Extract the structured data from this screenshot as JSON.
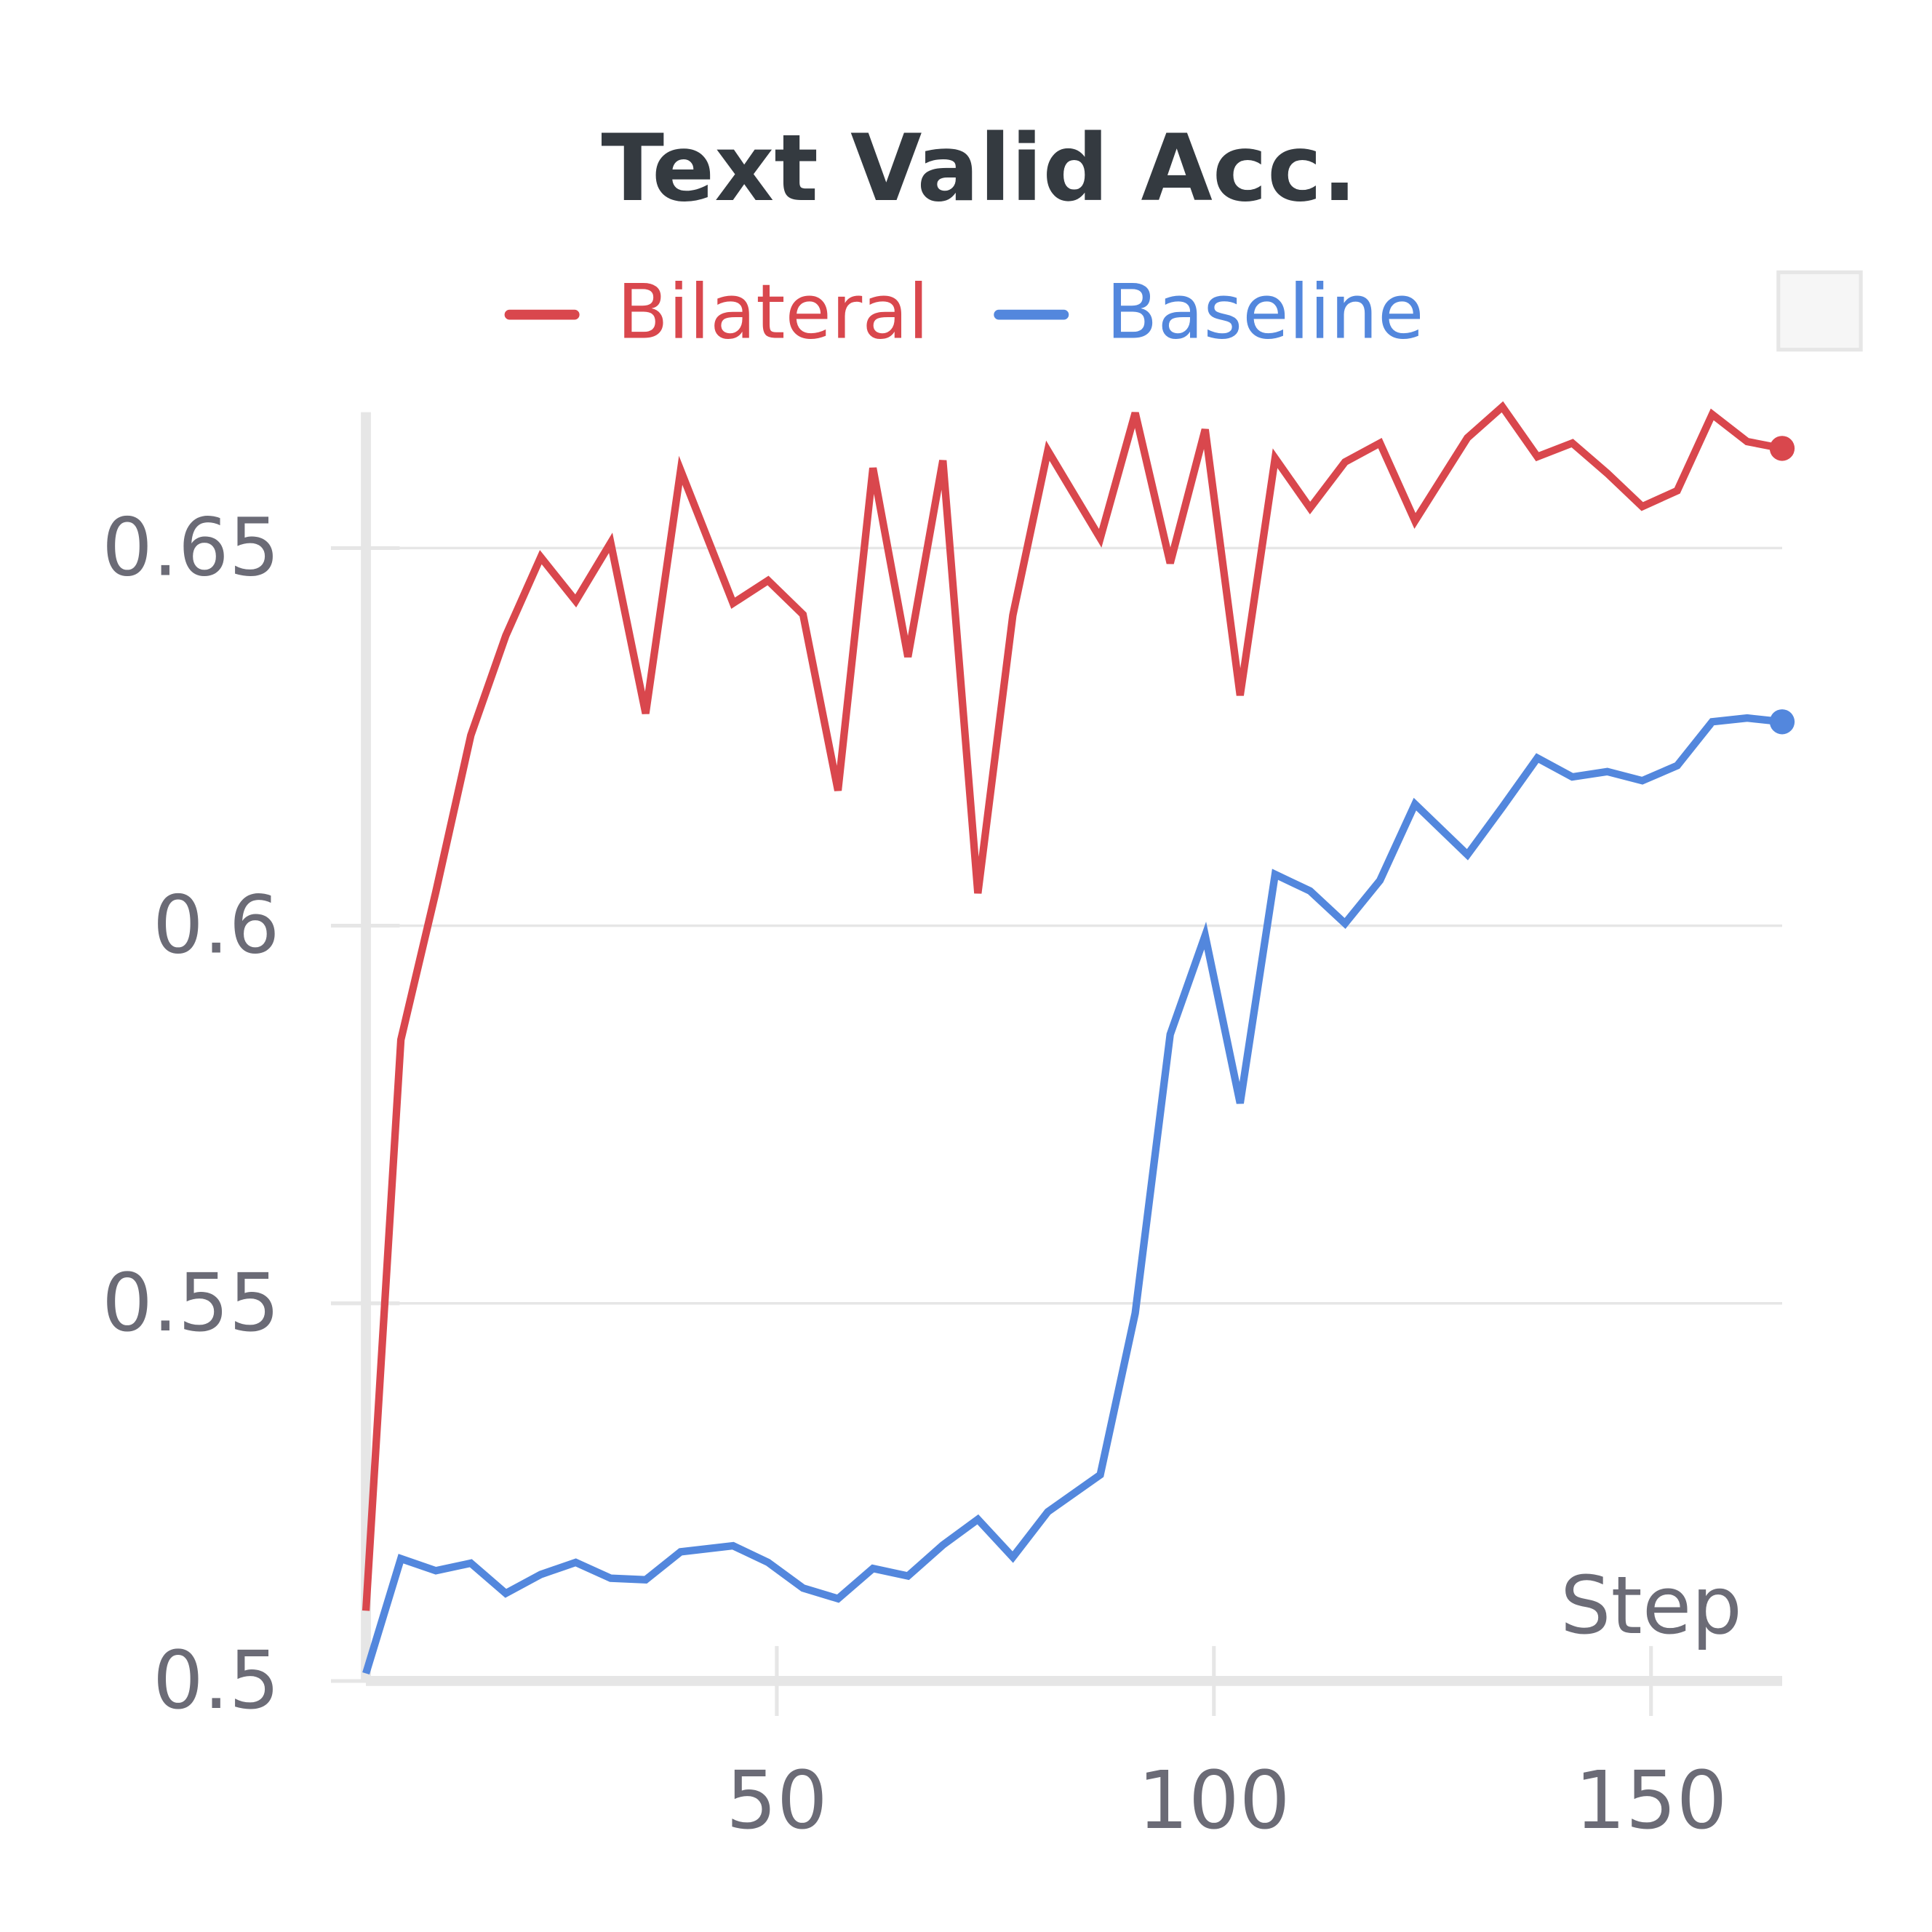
{
  "chart_data": {
    "type": "line",
    "title": "Text Valid Acc.",
    "x_label": "Step",
    "x": [
      3,
      7,
      11,
      15,
      19,
      23,
      27,
      31,
      35,
      39,
      45,
      49,
      53,
      57,
      61,
      65,
      69,
      73,
      77,
      81,
      87,
      91,
      95,
      99,
      103,
      107,
      111,
      115,
      119,
      123,
      129,
      133,
      137,
      141,
      145,
      149,
      153,
      157,
      161,
      165
    ],
    "series": [
      {
        "name": "Bilateral",
        "color": "#d9474d",
        "values": [
          0.5093,
          0.5849,
          0.6045,
          0.6252,
          0.6384,
          0.6488,
          0.643,
          0.6507,
          0.6281,
          0.6603,
          0.6427,
          0.6457,
          0.6412,
          0.6179,
          0.6606,
          0.6356,
          0.6616,
          0.6043,
          0.6411,
          0.6629,
          0.6513,
          0.6679,
          0.648,
          0.6657,
          0.6305,
          0.6619,
          0.6553,
          0.6614,
          0.6639,
          0.6536,
          0.6646,
          0.6687,
          0.6621,
          0.6639,
          0.6599,
          0.6555,
          0.6576,
          0.6677,
          0.6641,
          0.6632
        ]
      },
      {
        "name": "Baseline",
        "color": "#5387dd",
        "values": [
          0.501,
          0.5162,
          0.5146,
          0.5156,
          0.5116,
          0.5141,
          0.5157,
          0.5136,
          0.5134,
          0.5171,
          0.5179,
          0.5157,
          0.5123,
          0.5109,
          0.5149,
          0.5139,
          0.518,
          0.5214,
          0.5164,
          0.5224,
          0.5273,
          0.5487,
          0.5856,
          0.5987,
          0.5765,
          0.6068,
          0.6046,
          0.6003,
          0.606,
          0.6161,
          0.6094,
          0.6157,
          0.6222,
          0.6197,
          0.6204,
          0.6192,
          0.6212,
          0.627,
          0.6275,
          0.627
        ]
      }
    ],
    "xlim": [
      3,
      165
    ],
    "xticks": [
      50,
      100,
      150
    ],
    "ylim": [
      0.5,
      0.668
    ],
    "yticks": [
      0.5,
      0.55,
      0.6,
      0.65
    ],
    "grid": true,
    "legend": "top"
  }
}
